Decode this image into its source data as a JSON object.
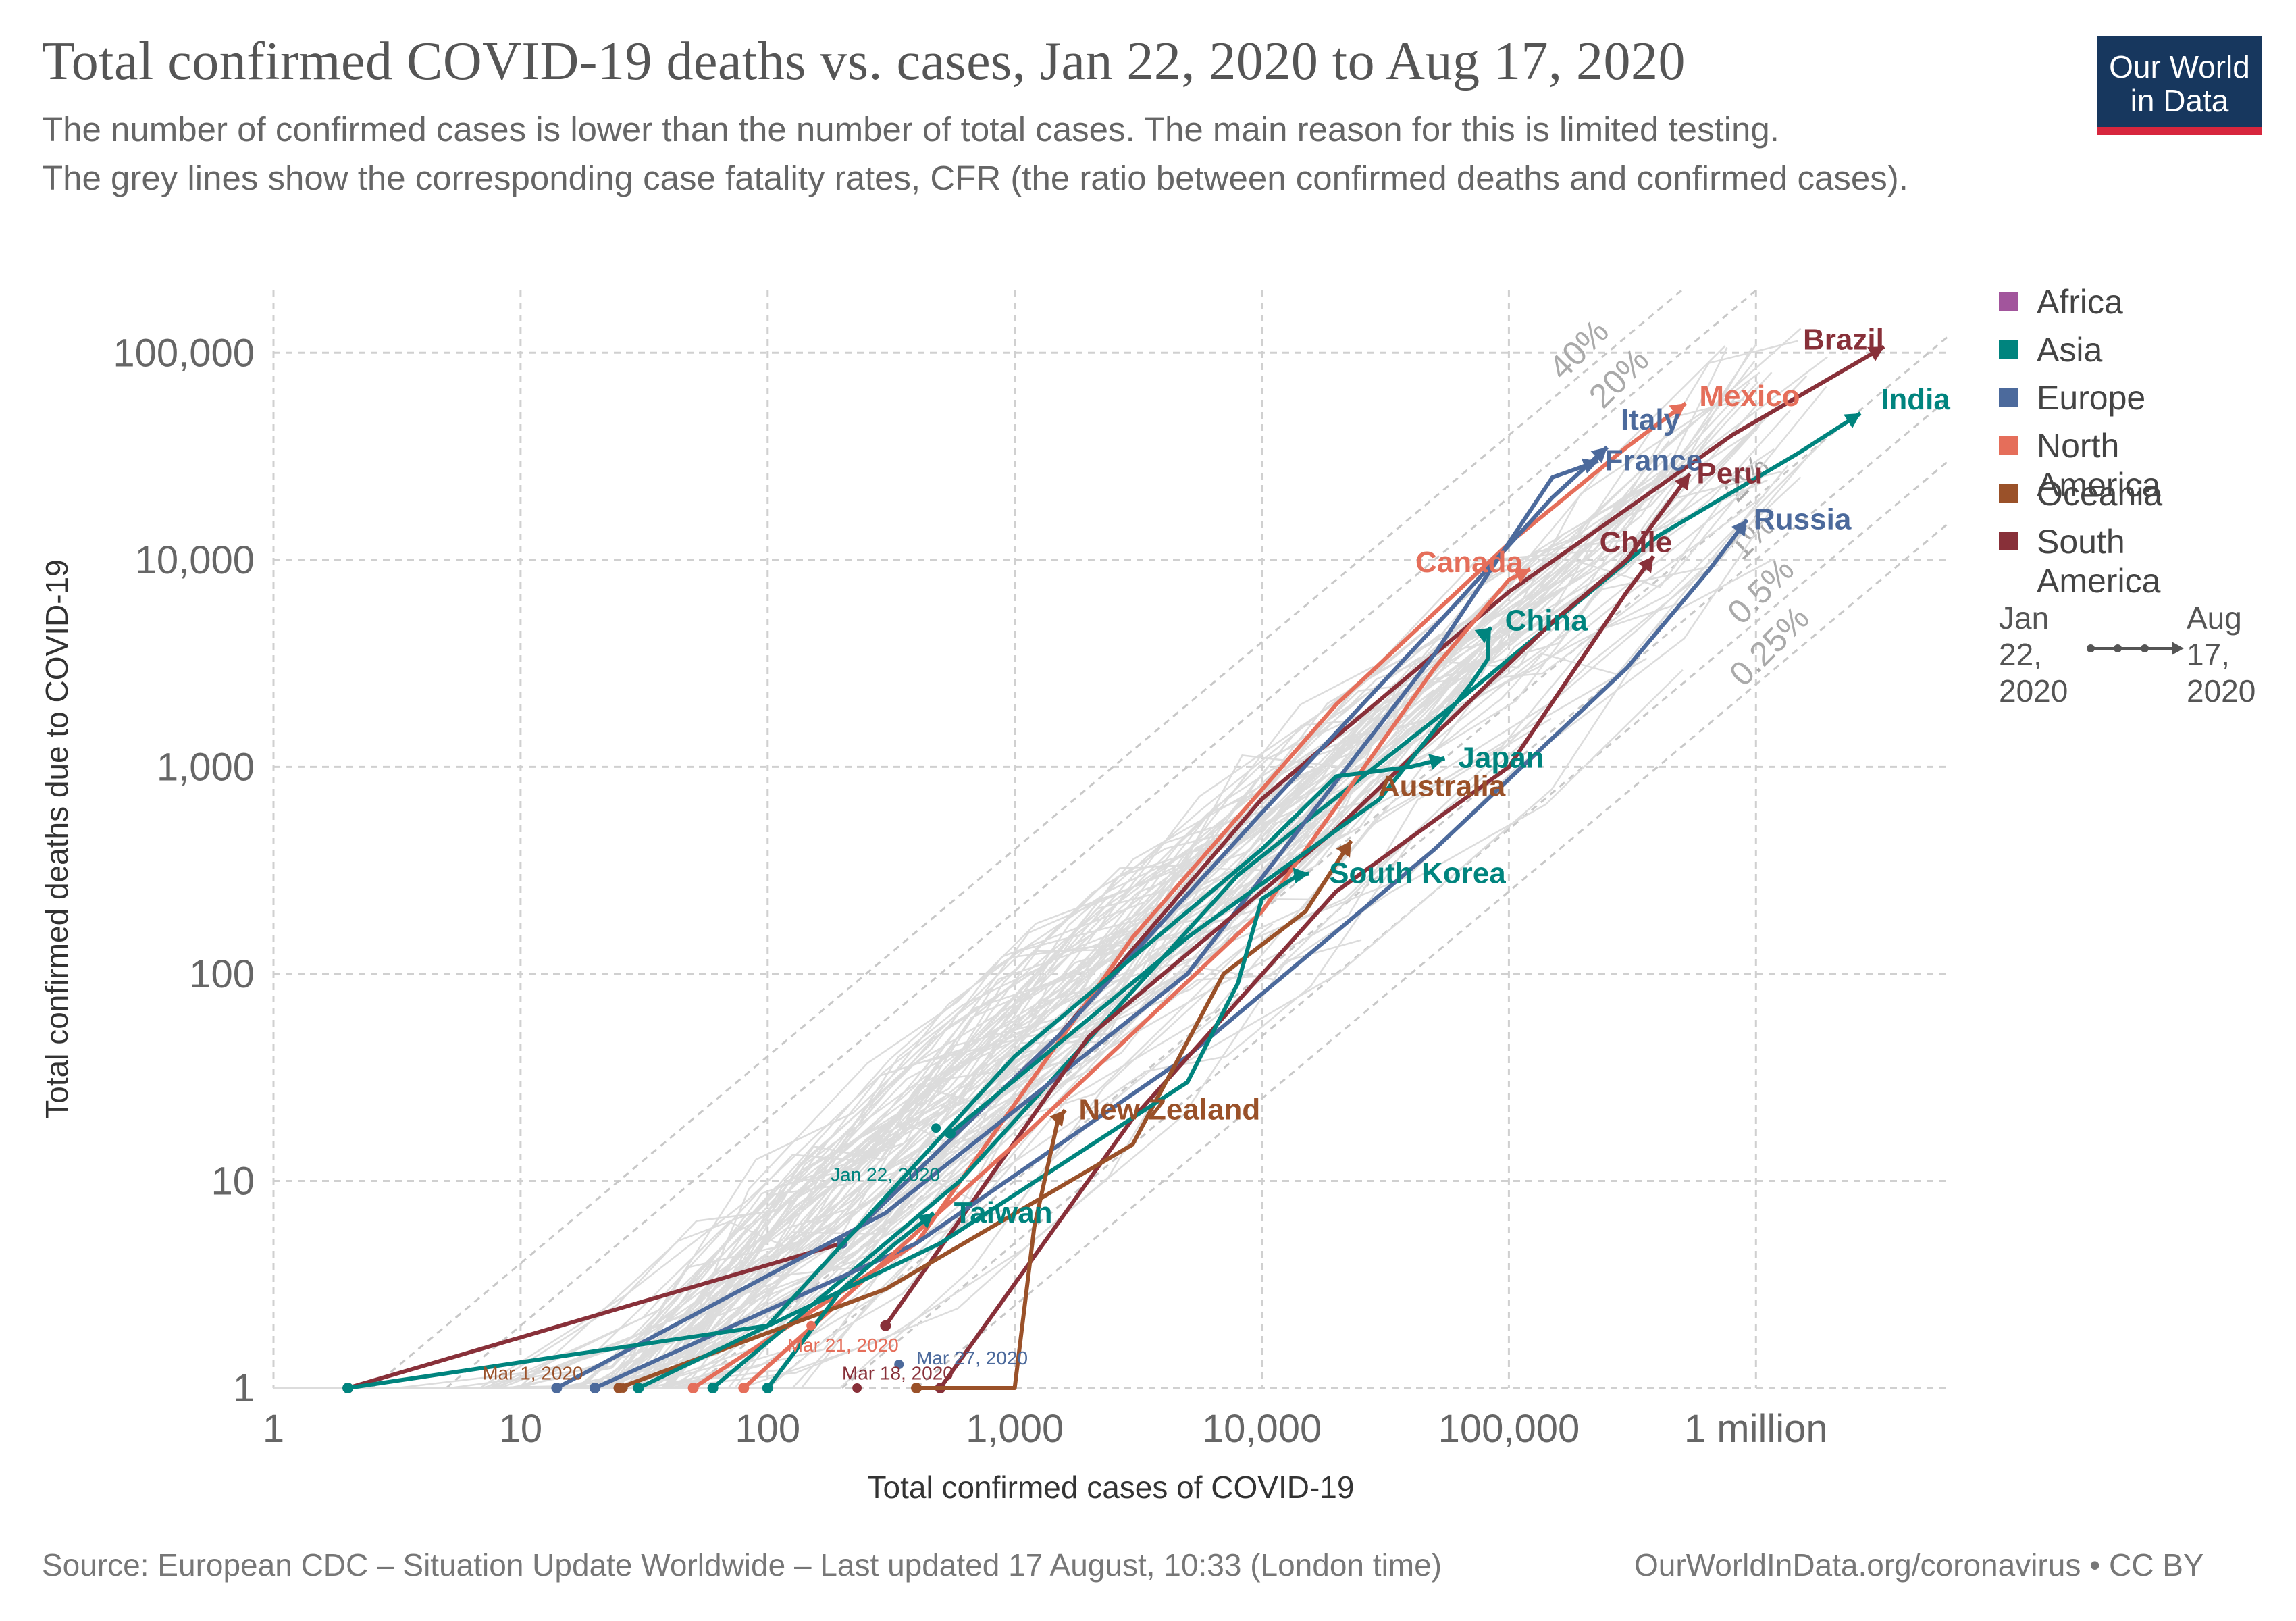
{
  "header": {
    "title": "Total confirmed COVID-19 deaths vs. cases, Jan 22, 2020 to Aug 17, 2020",
    "subtitle": "The number of confirmed cases is lower than the number of total cases. The main reason for this is limited testing.\n The grey lines show the corresponding case fatality rates, CFR (the ratio between confirmed deaths and confirmed cases).",
    "logo_line1": "Our World",
    "logo_line2": "in Data"
  },
  "footer": {
    "source": "Source: European CDC – Situation Update Worldwide – Last updated 17 August, 10:33 (London time)",
    "credit": "OurWorldInData.org/coronavirus • CC BY"
  },
  "legend": {
    "items": [
      {
        "label": "Africa",
        "color": "#a2559c"
      },
      {
        "label": "Asia",
        "color": "#00847e"
      },
      {
        "label": "Europe",
        "color": "#4c6a9c"
      },
      {
        "label": "North America",
        "color": "#e56e5a"
      },
      {
        "label": "Oceania",
        "color": "#9a5129"
      },
      {
        "label": "South America",
        "color": "#883039"
      }
    ],
    "time_start": "Jan\n22,\n2020",
    "time_end": "Aug\n17,\n2020"
  },
  "chart_data": {
    "type": "scatter",
    "xscale": "log",
    "yscale": "log",
    "xlabel": "Total confirmed cases of COVID-19",
    "ylabel": "Total confirmed deaths due to COVID-19",
    "xlim": [
      1,
      6000000
    ],
    "ylim": [
      1,
      200000
    ],
    "x_ticks": [
      {
        "v": 1,
        "label": "1"
      },
      {
        "v": 10,
        "label": "10"
      },
      {
        "v": 100,
        "label": "100"
      },
      {
        "v": 1000,
        "label": "1,000"
      },
      {
        "v": 10000,
        "label": "10,000"
      },
      {
        "v": 100000,
        "label": "100,000"
      },
      {
        "v": 1000000,
        "label": "1 million"
      }
    ],
    "y_ticks": [
      {
        "v": 1,
        "label": "1"
      },
      {
        "v": 10,
        "label": "10"
      },
      {
        "v": 100,
        "label": "100"
      },
      {
        "v": 1000,
        "label": "1,000"
      },
      {
        "v": 10000,
        "label": "10,000"
      },
      {
        "v": 100000,
        "label": "100,000"
      }
    ],
    "grid": true,
    "cfr_lines": [
      {
        "label": "40%",
        "rate": 0.4
      },
      {
        "label": "20%",
        "rate": 0.2
      },
      {
        "label": "2%",
        "rate": 0.02
      },
      {
        "label": "1%",
        "rate": 0.01
      },
      {
        "label": "0.5%",
        "rate": 0.005
      },
      {
        "label": "0.25%",
        "rate": 0.0025
      }
    ],
    "series": [
      {
        "name": "Brazil",
        "region": "South America",
        "color": "#883039",
        "points": [
          [
            2,
            1
          ],
          [
            200,
            5
          ],
          [
            1500,
            50
          ],
          [
            10000,
            700
          ],
          [
            100000,
            7000
          ],
          [
            800000,
            40000
          ],
          [
            3300000,
            107000
          ]
        ]
      },
      {
        "name": "Mexico",
        "region": "North America",
        "color": "#e56e5a",
        "points": [
          [
            50,
            1
          ],
          [
            400,
            5
          ],
          [
            3000,
            150
          ],
          [
            20000,
            2000
          ],
          [
            100000,
            12000
          ],
          [
            300000,
            35000
          ],
          [
            520000,
            57000
          ]
        ]
      },
      {
        "name": "India",
        "region": "Asia",
        "color": "#00847e",
        "points": [
          [
            60,
            1
          ],
          [
            600,
            10
          ],
          [
            8000,
            300
          ],
          [
            60000,
            2000
          ],
          [
            400000,
            13000
          ],
          [
            1500000,
            33000
          ],
          [
            2650000,
            51000
          ]
        ]
      },
      {
        "name": "Italy",
        "region": "Europe",
        "color": "#4c6a9c",
        "points": [
          [
            200,
            5
          ],
          [
            1500,
            50
          ],
          [
            10000,
            600
          ],
          [
            60000,
            6000
          ],
          [
            150000,
            20000
          ],
          [
            250000,
            35000
          ]
        ]
      },
      {
        "name": "France",
        "region": "Europe",
        "color": "#4c6a9c",
        "points": [
          [
            14,
            1
          ],
          [
            300,
            7
          ],
          [
            5000,
            100
          ],
          [
            50000,
            3500
          ],
          [
            150000,
            25000
          ],
          [
            230000,
            30000
          ]
        ]
      },
      {
        "name": "Peru",
        "region": "South America",
        "color": "#883039",
        "points": [
          [
            300,
            2
          ],
          [
            2000,
            50
          ],
          [
            20000,
            500
          ],
          [
            150000,
            5000
          ],
          [
            300000,
            10000
          ],
          [
            540000,
            26000
          ]
        ]
      },
      {
        "name": "Russia",
        "region": "Europe",
        "color": "#4c6a9c",
        "points": [
          [
            20,
            1
          ],
          [
            400,
            5
          ],
          [
            5000,
            40
          ],
          [
            50000,
            400
          ],
          [
            300000,
            3000
          ],
          [
            650000,
            9000
          ],
          [
            920000,
            15600
          ]
        ]
      },
      {
        "name": "Chile",
        "region": "South America",
        "color": "#883039",
        "points": [
          [
            500,
            1
          ],
          [
            3000,
            20
          ],
          [
            20000,
            250
          ],
          [
            100000,
            1000
          ],
          [
            300000,
            7000
          ],
          [
            385000,
            10400
          ]
        ]
      },
      {
        "name": "Canada",
        "region": "North America",
        "color": "#e56e5a",
        "points": [
          [
            80,
            1
          ],
          [
            1000,
            15
          ],
          [
            10000,
            200
          ],
          [
            50000,
            3000
          ],
          [
            100000,
            8000
          ],
          [
            122000,
            9000
          ]
        ]
      },
      {
        "name": "China",
        "region": "Asia",
        "color": "#00847e",
        "points": [
          [
            548,
            17
          ],
          [
            5000,
            150
          ],
          [
            30000,
            700
          ],
          [
            70000,
            2500
          ],
          [
            82000,
            3300
          ],
          [
            83000,
            4600
          ],
          [
            85000,
            4700
          ]
        ]
      },
      {
        "name": "Japan",
        "region": "Asia",
        "color": "#00847e",
        "points": [
          [
            2,
            1
          ],
          [
            100,
            2
          ],
          [
            1000,
            40
          ],
          [
            10000,
            400
          ],
          [
            20000,
            900
          ],
          [
            40000,
            1000
          ],
          [
            55000,
            1100
          ]
        ]
      },
      {
        "name": "Australia",
        "region": "Oceania",
        "color": "#9a5129",
        "points": [
          [
            25,
            1
          ],
          [
            300,
            3
          ],
          [
            3000,
            15
          ],
          [
            7000,
            100
          ],
          [
            15000,
            200
          ],
          [
            23000,
            440
          ]
        ]
      },
      {
        "name": "South Korea",
        "region": "Asia",
        "color": "#00847e",
        "points": [
          [
            30,
            1
          ],
          [
            500,
            5
          ],
          [
            5000,
            30
          ],
          [
            8000,
            90
          ],
          [
            10000,
            230
          ],
          [
            14000,
            300
          ],
          [
            15500,
            305
          ]
        ]
      },
      {
        "name": "New Zealand",
        "region": "Oceania",
        "color": "#9a5129",
        "points": [
          [
            400,
            1
          ],
          [
            1000,
            1
          ],
          [
            1200,
            6
          ],
          [
            1500,
            20
          ],
          [
            1600,
            22
          ]
        ]
      },
      {
        "name": "Taiwan",
        "region": "Asia",
        "color": "#00847e",
        "points": [
          [
            100,
            1
          ],
          [
            200,
            3
          ],
          [
            330,
            5
          ],
          [
            400,
            6
          ],
          [
            470,
            7
          ]
        ]
      }
    ],
    "date_annotations": [
      {
        "label": "Jan 22, 2020",
        "color": "#00847e"
      },
      {
        "label": "Mar 21, 2020",
        "color": "#e56e5a"
      },
      {
        "label": "Mar 27, 2020",
        "color": "#4c6a9c"
      },
      {
        "label": "Mar 1, 2020",
        "color": "#9a5129"
      },
      {
        "label": "Mar 18, 2020",
        "color": "#883039"
      }
    ]
  }
}
